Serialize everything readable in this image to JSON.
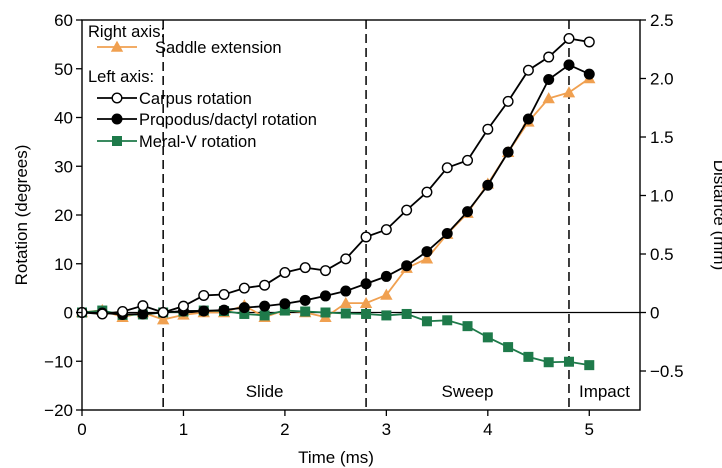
{
  "chart_data": {
    "type": "line",
    "title": "",
    "xlabel": "Time (ms)",
    "ylabel_left": "Rotation (degrees)",
    "ylabel_right": "Distance (mm)",
    "xlim": [
      0,
      5.5
    ],
    "ylim_left": [
      -20,
      60
    ],
    "ylim_right": [
      -0.8333,
      2.5
    ],
    "x_ticks": [
      "0",
      "1",
      "2",
      "3",
      "4",
      "5"
    ],
    "y_left_ticks": [
      "60",
      "50",
      "40",
      "30",
      "20",
      "10",
      "0",
      "−10",
      "−20"
    ],
    "y_right_ticks": [
      "2.5",
      "2.0",
      "1.5",
      "1.0",
      "0.5",
      "0",
      "−0.5"
    ],
    "grid": false,
    "legend": {
      "placement": "top-left",
      "headings": {
        "right_axis": "Right axis:",
        "left_axis": "Left axis:"
      }
    },
    "phase_markers": [
      0.8,
      2.8,
      4.8
    ],
    "phase_labels": [
      "Slide",
      "Sweep",
      "Impact"
    ],
    "series": [
      {
        "name": "Saddle extension",
        "axis": "right",
        "color": "#f0a050",
        "marker": "triangle",
        "x": [
          0,
          0.2,
          0.4,
          0.6,
          0.8,
          1.0,
          1.2,
          1.4,
          1.6,
          1.8,
          2.0,
          2.2,
          2.4,
          2.6,
          2.8,
          3.0,
          3.2,
          3.4,
          3.6,
          3.8,
          4.0,
          4.2,
          4.4,
          4.6,
          4.8,
          5.0
        ],
        "values": [
          0,
          0.02,
          -0.04,
          0,
          -0.06,
          -0.02,
          0,
          0,
          0.06,
          -0.04,
          0.02,
          0,
          -0.04,
          0.08,
          0.08,
          0.15,
          0.38,
          0.46,
          0.67,
          0.85,
          1.1,
          1.37,
          1.63,
          1.83,
          1.88,
          2.0
        ]
      },
      {
        "name": "Carpus rotation",
        "axis": "left",
        "color": "#000000",
        "marker": "open-circle",
        "x": [
          0,
          0.2,
          0.4,
          0.6,
          0.8,
          1.0,
          1.2,
          1.4,
          1.6,
          1.8,
          2.0,
          2.2,
          2.4,
          2.6,
          2.8,
          3.0,
          3.2,
          3.4,
          3.6,
          3.8,
          4.0,
          4.2,
          4.4,
          4.6,
          4.8,
          5.0
        ],
        "values": [
          0,
          -0.3,
          0.2,
          1.4,
          0,
          1.3,
          3.5,
          3.7,
          5,
          5.6,
          8.2,
          9.2,
          8.6,
          11,
          15.5,
          17,
          21,
          24.7,
          29.7,
          31.2,
          37.6,
          43.3,
          49.7,
          52.4,
          56.2,
          55.5
        ]
      },
      {
        "name": "Propodus/dactyl rotation",
        "axis": "left",
        "color": "#000000",
        "marker": "filled-circle",
        "x": [
          0,
          0.2,
          0.4,
          0.6,
          0.8,
          1.0,
          1.2,
          1.4,
          1.6,
          1.8,
          2.0,
          2.2,
          2.4,
          2.6,
          2.8,
          3.0,
          3.2,
          3.4,
          3.6,
          3.8,
          4.0,
          4.2,
          4.4,
          4.6,
          4.8,
          5.0
        ],
        "values": [
          0,
          -0.1,
          -0.4,
          -0.3,
          0,
          0.3,
          0.3,
          0.5,
          1.0,
          1.3,
          1.8,
          2.5,
          3.4,
          4.4,
          5.9,
          7.4,
          9.6,
          12.5,
          16.2,
          20.7,
          26.1,
          32.9,
          39.7,
          47.8,
          50.8,
          48.9
        ]
      },
      {
        "name": "Meral-V rotation",
        "axis": "left",
        "color": "#1e7a4a",
        "marker": "filled-square",
        "x": [
          0,
          0.2,
          0.4,
          0.6,
          0.8,
          1.0,
          1.2,
          1.4,
          1.6,
          1.8,
          2.0,
          2.2,
          2.4,
          2.6,
          2.8,
          3.0,
          3.2,
          3.4,
          3.6,
          3.8,
          4.0,
          4.2,
          4.4,
          4.6,
          4.8,
          5.0
        ],
        "values": [
          0,
          0.4,
          -0.5,
          -0.4,
          0,
          0.2,
          0.4,
          0.3,
          -0.3,
          -0.6,
          0.4,
          0.2,
          0,
          -0.2,
          -0.3,
          -0.6,
          -0.3,
          -1.8,
          -1.6,
          -2.8,
          -5.1,
          -7.1,
          -9.1,
          -10.2,
          -10.1,
          -10.8
        ]
      }
    ]
  }
}
